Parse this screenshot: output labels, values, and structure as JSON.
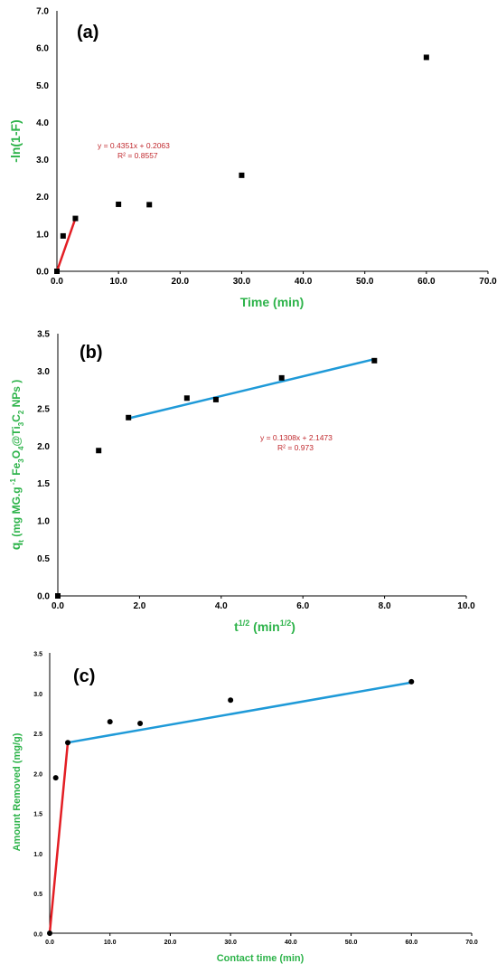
{
  "colors": {
    "axis_title": "#2db34a",
    "initial_fit": "#e31e24",
    "diffusion_fit": "#1f9ad8",
    "marker": "#000000",
    "annotation": "#c0282d"
  },
  "chart_data": [
    {
      "type": "scatter",
      "panel_label": "(a)",
      "xlabel": "Time (min)",
      "ylabel": "-ln(1-F)",
      "xlim": [
        0,
        70
      ],
      "ylim": [
        0,
        7
      ],
      "xticks": [
        "0.0",
        "10.0",
        "20.0",
        "30.0",
        "40.0",
        "50.0",
        "60.0",
        "70.0"
      ],
      "yticks": [
        "0.0",
        "1.0",
        "2.0",
        "3.0",
        "4.0",
        "5.0",
        "6.0",
        "7.0"
      ],
      "grid": false,
      "series": [
        {
          "marker": "square",
          "x": [
            0,
            1,
            3,
            10,
            15,
            30,
            60
          ],
          "y": [
            0.0,
            0.95,
            1.42,
            1.8,
            1.79,
            2.58,
            5.75
          ]
        }
      ],
      "fit_lines": [
        {
          "color_key": "initial_fit",
          "x": [
            0,
            3
          ],
          "y": [
            0.0,
            1.42
          ]
        }
      ],
      "annotations": [
        "y = 0.4351x + 0.2063",
        "R² = 0.8557"
      ]
    },
    {
      "type": "scatter",
      "panel_label": "(b)",
      "xlabel": "t",
      "xlabel_sup": "1/2",
      "xlabel_tail": " (min",
      "xlabel_tail_sup": "1/2",
      "xlabel_end": ")",
      "ylabel": "q",
      "ylabel_sub": "t",
      "ylabel_mid": " (mg MG.g",
      "ylabel_sup": " -1",
      "ylabel_mid2": " Fe",
      "ylabel_sub2": "3",
      "ylabel_mid3": "O",
      "ylabel_sub3": "4",
      "ylabel_mid4": "@Ti",
      "ylabel_sub4": "3",
      "ylabel_mid5": "C",
      "ylabel_sub5": "2",
      "ylabel_end": " NPs )",
      "xlim": [
        0,
        10
      ],
      "ylim": [
        0,
        3.5
      ],
      "xticks": [
        "0.0",
        "2.0",
        "4.0",
        "6.0",
        "8.0",
        "10.0"
      ],
      "yticks": [
        "0.0",
        "0.5",
        "1.0",
        "1.5",
        "2.0",
        "2.5",
        "3.0",
        "3.5"
      ],
      "grid": false,
      "series": [
        {
          "marker": "square",
          "x": [
            0,
            1.0,
            1.73,
            3.16,
            3.87,
            5.48,
            7.75
          ],
          "y": [
            0.0,
            1.94,
            2.38,
            2.64,
            2.62,
            2.91,
            3.14
          ]
        }
      ],
      "fit_lines": [
        {
          "color_key": "diffusion_fit",
          "x": [
            1.73,
            7.75
          ],
          "y": [
            2.37,
            3.16
          ]
        }
      ],
      "annotations": [
        "y = 0.1308x + 2.1473",
        "R² = 0.973"
      ]
    },
    {
      "type": "scatter",
      "panel_label": "(c)",
      "xlabel": "Contact time (min)",
      "ylabel": "Amount Removed (mg/g)",
      "xlim": [
        0,
        70
      ],
      "ylim": [
        0,
        3.5
      ],
      "xticks": [
        "0.0",
        "10.0",
        "20.0",
        "30.0",
        "40.0",
        "50.0",
        "60.0",
        "70.0"
      ],
      "yticks": [
        "0.0",
        "0.5",
        "1.0",
        "1.5",
        "2.0",
        "2.5",
        "3.0",
        "3.5"
      ],
      "grid": false,
      "series": [
        {
          "marker": "circle",
          "x": [
            0,
            1,
            3,
            10,
            15,
            30,
            60
          ],
          "y": [
            0.0,
            1.94,
            2.38,
            2.64,
            2.62,
            2.91,
            3.14
          ]
        }
      ],
      "fit_lines": [
        {
          "color_key": "initial_fit",
          "x": [
            0,
            3
          ],
          "y": [
            0.0,
            2.38
          ]
        },
        {
          "color_key": "diffusion_fit",
          "x": [
            3,
            60
          ],
          "y": [
            2.38,
            3.13
          ]
        }
      ],
      "annotations": []
    }
  ]
}
